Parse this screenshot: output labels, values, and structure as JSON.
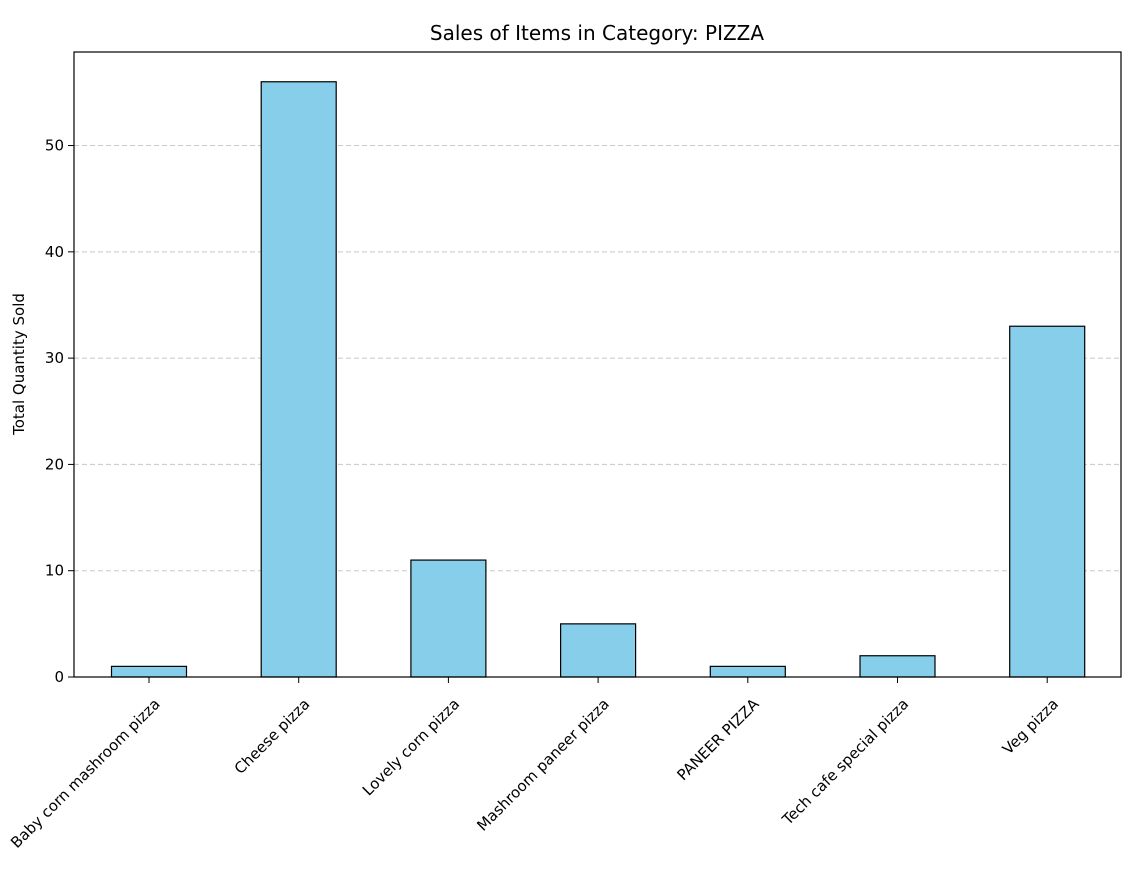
{
  "chart_data": {
    "type": "bar",
    "title": "Sales of Items in Category: PIZZA",
    "xlabel": "",
    "ylabel": "Total Quantity Sold",
    "categories": [
      "Baby corn mashroom pizza",
      "Cheese pizza",
      "Lovely corn pizza",
      "Mashroom paneer pizza",
      "PANEER PIZZA",
      "Tech cafe special pizza",
      "Veg pizza"
    ],
    "values": [
      1,
      56,
      11,
      5,
      1,
      2,
      33
    ],
    "ylim": [
      0,
      58.8
    ],
    "yticks": [
      "0",
      "10",
      "20",
      "30",
      "40",
      "50"
    ],
    "grid": "y-dashed",
    "legend": "none",
    "colors": {
      "bar_fill": "#87CEEB",
      "bar_edge": "#000000",
      "grid": "#c8c8c8",
      "axis": "#000000",
      "background": "#ffffff"
    }
  }
}
